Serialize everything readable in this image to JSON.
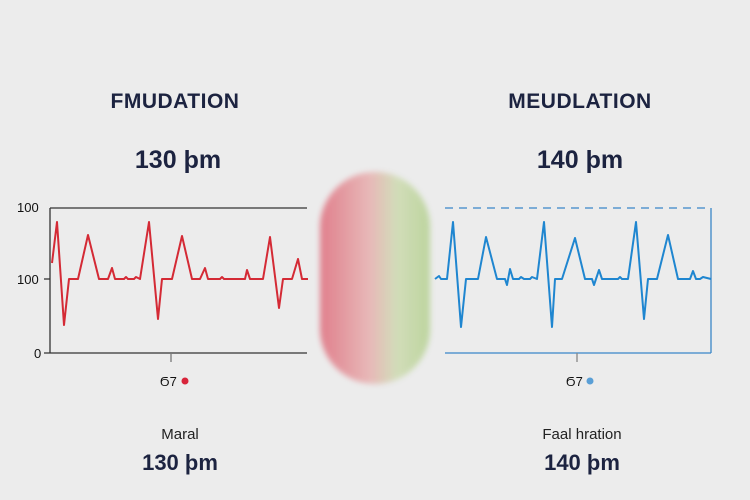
{
  "left": {
    "title": "FMUDATION",
    "bpm": "130 þm",
    "axis_ticks": [
      "100",
      "100",
      "0"
    ],
    "marker_label": "Ϭ7",
    "marker_color": "#d8243a",
    "bottom_label": "Maral",
    "bottom_bpm": "130 þm",
    "trace_color": "#d42a35"
  },
  "right": {
    "title": "MEUDLATION",
    "bpm": "140 þm",
    "marker_label": "Ϭ7",
    "marker_color": "#5a9fd6",
    "bottom_label": "Faal hration",
    "bottom_bpm": "140 þm",
    "trace_color": "#1f86d0"
  },
  "center_gradient": {
    "from": "#e07a86",
    "to": "#b9d39a"
  }
}
